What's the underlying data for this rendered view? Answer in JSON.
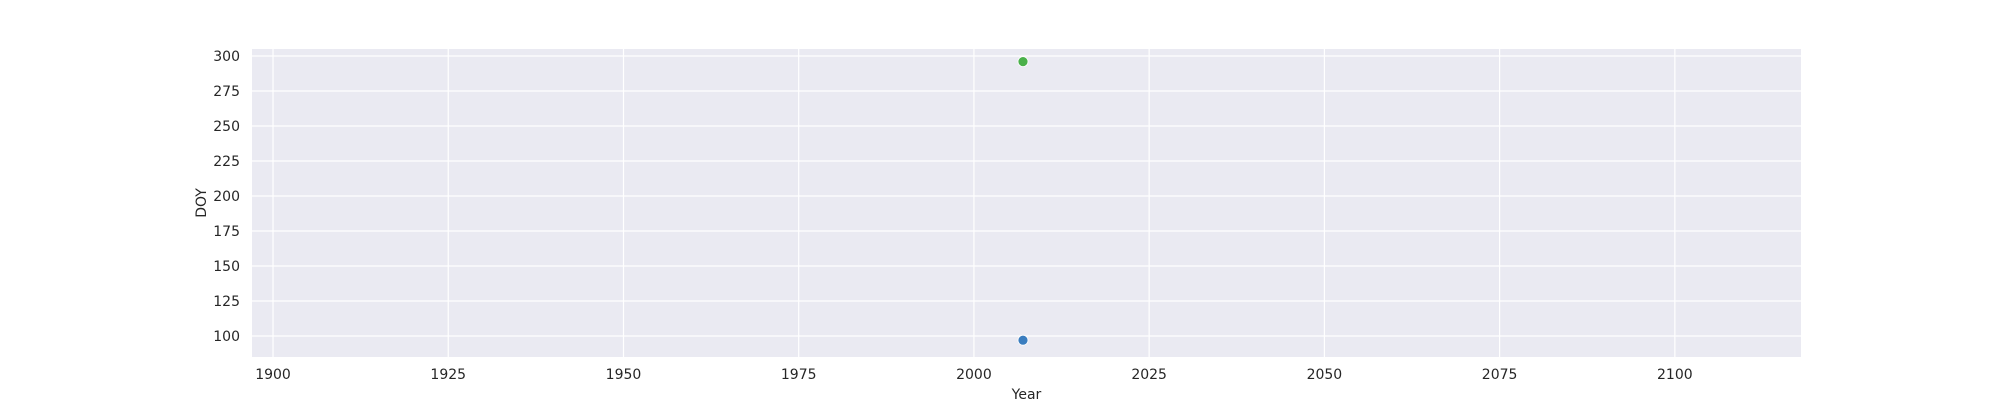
{
  "chart_data": {
    "type": "scatter",
    "title": "",
    "xlabel": "Year",
    "ylabel": "DOY",
    "xlim": [
      1897,
      2118
    ],
    "ylim": [
      85,
      305
    ],
    "xticks": [
      1900,
      1925,
      1950,
      1975,
      2000,
      2025,
      2050,
      2075,
      2100
    ],
    "yticks": [
      100,
      125,
      150,
      175,
      200,
      225,
      250,
      275,
      300
    ],
    "grid": true,
    "legend": "none",
    "colors": {
      "plot_bg": "#eaeaf2",
      "grid": "#ffffff",
      "text": "#262626"
    },
    "series": [
      {
        "color": "#3a7dbf",
        "points": [
          {
            "x": 2007,
            "y": 97
          }
        ]
      },
      {
        "color": "#4ab04a",
        "points": [
          {
            "x": 2007,
            "y": 296
          }
        ]
      }
    ]
  }
}
